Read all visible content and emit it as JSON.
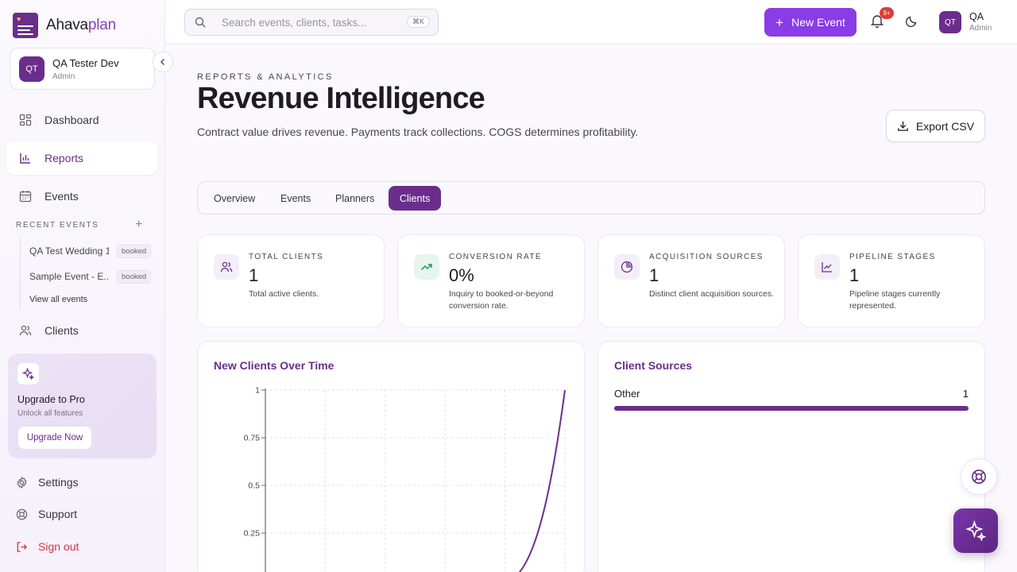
{
  "app": {
    "name_main": "Ahava",
    "name_accent": "plan"
  },
  "user": {
    "initials": "QT",
    "name": "QA Tester Dev",
    "role": "Admin"
  },
  "sidebar": {
    "nav": [
      {
        "label": "Dashboard",
        "icon": "grid-icon"
      },
      {
        "label": "Reports",
        "icon": "bar-chart-icon"
      },
      {
        "label": "Events",
        "icon": "calendar-icon"
      }
    ],
    "recent_title": "RECENT EVENTS",
    "recent": [
      {
        "name": "QA Test Wedding 1",
        "status": "booked"
      },
      {
        "name": "Sample Event - E...",
        "status": "booked"
      }
    ],
    "view_all": "View all events",
    "clients_label": "Clients",
    "upgrade": {
      "title": "Upgrade to Pro",
      "subtitle": "Unlock all features",
      "button": "Upgrade Now"
    },
    "settings_label": "Settings",
    "support_label": "Support",
    "signout_label": "Sign out"
  },
  "topbar": {
    "search_placeholder": "Search events, clients, tasks...",
    "shortcut": "⌘K",
    "new_event": "New Event",
    "notif_count": "9+",
    "user_name": "QA",
    "user_role": "Admin",
    "user_initials": "QT"
  },
  "page": {
    "eyebrow": "REPORTS & ANALYTICS",
    "title": "Revenue Intelligence",
    "subtitle": "Contract value drives revenue. Payments track collections. COGS determines profitability.",
    "export_label": "Export CSV"
  },
  "tabs": [
    {
      "label": "Overview",
      "active": false
    },
    {
      "label": "Events",
      "active": false
    },
    {
      "label": "Planners",
      "active": false
    },
    {
      "label": "Clients",
      "active": true
    }
  ],
  "stats": [
    {
      "label": "TOTAL CLIENTS",
      "value": "1",
      "desc": "Total active clients.",
      "icon": "users-icon"
    },
    {
      "label": "CONVERSION RATE",
      "value": "0%",
      "desc": "Inquiry to booked-or-beyond conversion rate.",
      "icon": "trending-up-icon"
    },
    {
      "label": "ACQUISITION SOURCES",
      "value": "1",
      "desc": "Distinct client acquisition sources.",
      "icon": "pie-chart-icon"
    },
    {
      "label": "PIPELINE STAGES",
      "value": "1",
      "desc": "Pipeline stages currently represented.",
      "icon": "line-chart-icon"
    }
  ],
  "new_clients_panel": {
    "title": "New Clients Over Time"
  },
  "chart_data": {
    "type": "line",
    "title": "New Clients Over Time",
    "ytick_labels": [
      "1",
      "0.75",
      "0.5",
      "0.25"
    ],
    "ylim": [
      0,
      1
    ],
    "grid": true,
    "color": "#6b2d8c",
    "series": [
      {
        "values": [
          0,
          0,
          0,
          0,
          0,
          1
        ]
      }
    ]
  },
  "client_sources": {
    "title": "Client Sources",
    "items": [
      {
        "label": "Other",
        "count": 1,
        "fraction": 1.0
      }
    ]
  },
  "colors": {
    "brand": "#6b2d8c",
    "accent": "#8a3ce6",
    "danger": "#d4324a"
  }
}
